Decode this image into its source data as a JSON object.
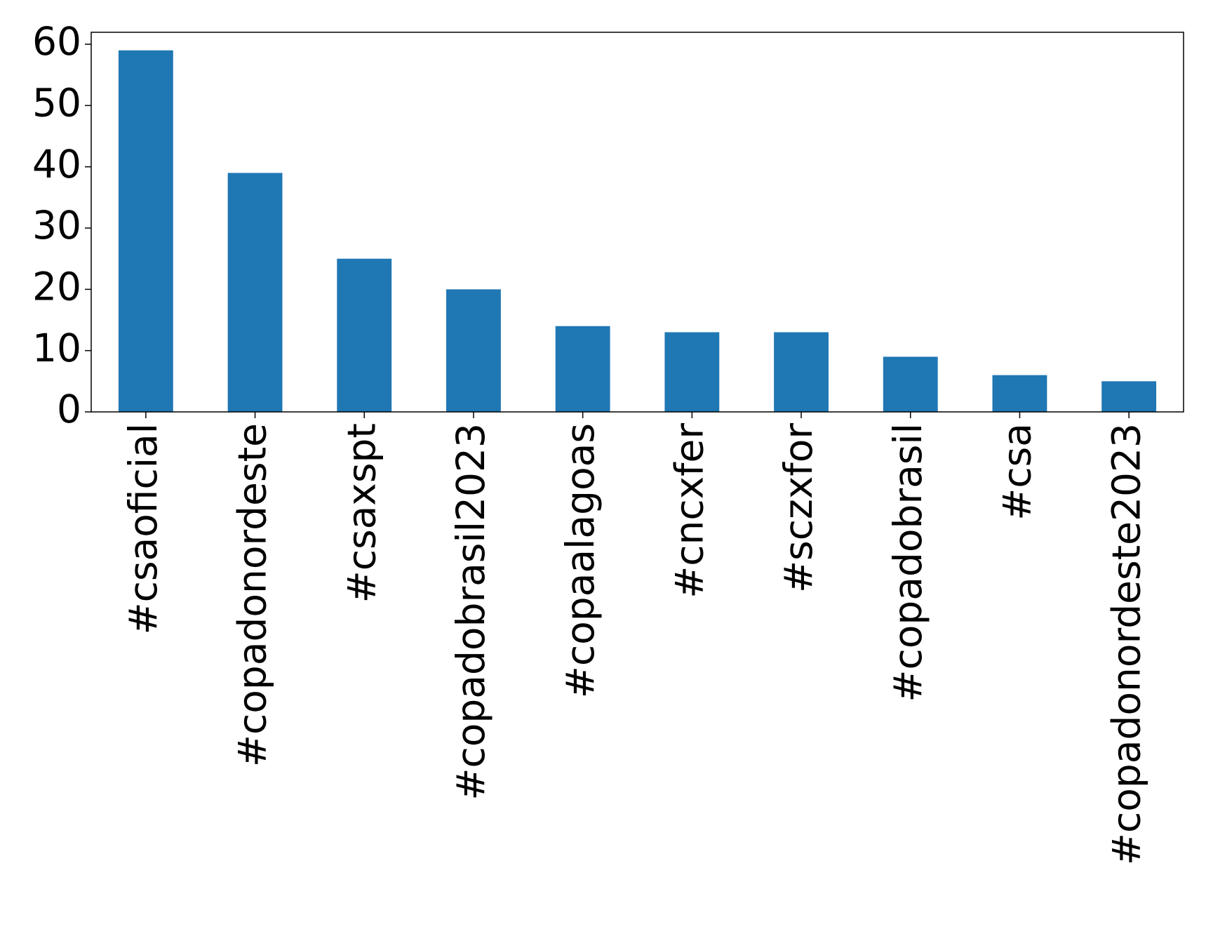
{
  "chart_data": {
    "type": "bar",
    "categories": [
      "#csaoficial",
      "#copadonordeste",
      "#csaxspt",
      "#copadobrasil2023",
      "#copaalagoas",
      "#cncxfer",
      "#sczxfor",
      "#copadobrasil",
      "#csa",
      "#copadonordeste2023"
    ],
    "values": [
      59,
      39,
      25,
      20,
      14,
      13,
      13,
      9,
      6,
      5
    ],
    "color": "#1f77b4",
    "ylim": [
      0,
      61.95
    ],
    "yticks": [
      0,
      10,
      20,
      30,
      40,
      50,
      60
    ],
    "grid": false
  }
}
